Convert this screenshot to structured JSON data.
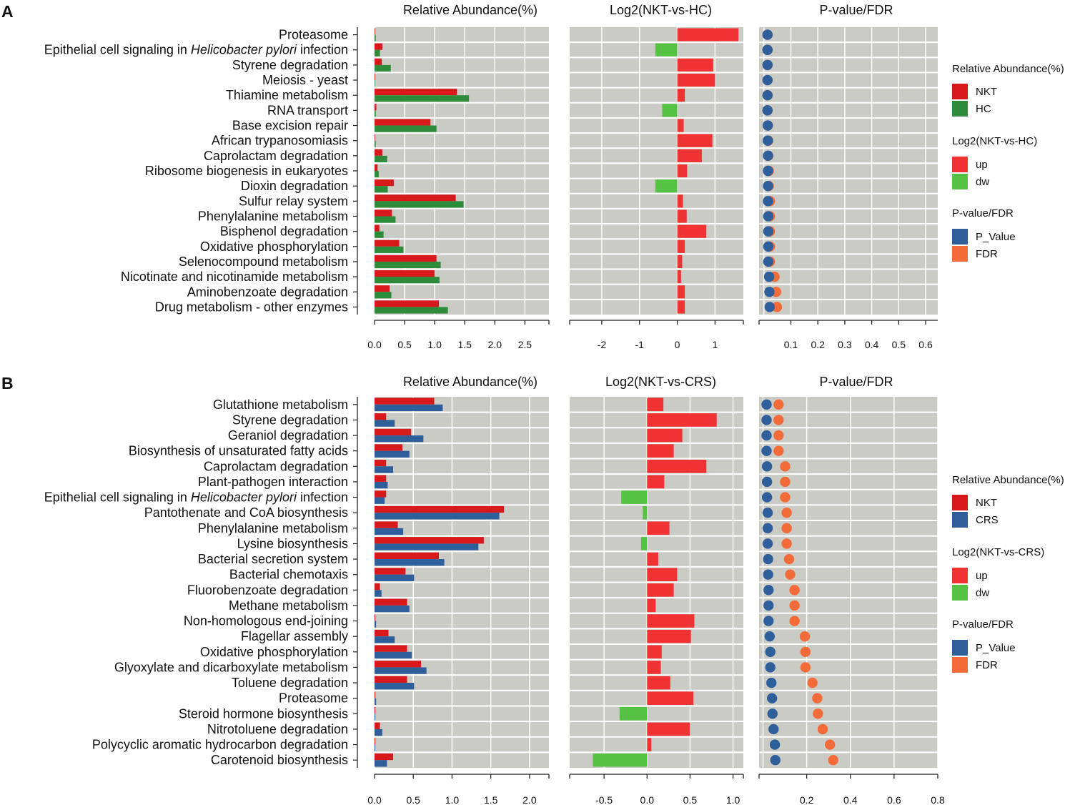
{
  "figure": {
    "panels": [
      {
        "label": "A",
        "categories": [
          "Proteasome",
          "Epithelial cell signaling in Helicobacter pylori infection",
          "Styrene degradation",
          "Meiosis - yeast",
          "Thiamine metabolism",
          "RNA transport",
          "Base excision repair",
          "African trypanosomiasis",
          "Caprolactam degradation",
          "Ribosome biogenesis in eukaryotes",
          "Dioxin degradation",
          "Sulfur relay system",
          "Phenylalanine metabolism",
          "Bisphenol degradation",
          "Oxidative phosphorylation",
          "Selenocompound metabolism",
          "Nicotinate and nicotinamide metabolism",
          "Aminobenzoate degradation",
          "Drug metabolism - other enzymes"
        ],
        "abundance": {
          "title": "Relative Abundance(%)",
          "xlim": [
            0,
            2.9
          ],
          "ticks": [
            "0.0",
            "0.5",
            "1.0",
            "1.5",
            "2.0",
            "2.5"
          ],
          "series": [
            {
              "name": "NKT",
              "color": "#d7191c",
              "values": [
                0.01,
                0.13,
                0.12,
                0.01,
                1.37,
                0.03,
                0.93,
                0.01,
                0.13,
                0.05,
                0.32,
                1.35,
                0.29,
                0.08,
                0.41,
                1.03,
                1.0,
                0.25,
                1.07
              ]
            },
            {
              "name": "HC",
              "color": "#2e8b3a",
              "values": [
                0.02,
                0.09,
                0.27,
                0.0,
                1.57,
                0.02,
                1.03,
                0.02,
                0.21,
                0.07,
                0.22,
                1.48,
                0.35,
                0.15,
                0.48,
                1.1,
                1.08,
                0.28,
                1.22
              ]
            }
          ]
        },
        "log2": {
          "title": "Log2(NKT-vs-HC)",
          "xlim": [
            -2.85,
            1.75
          ],
          "ticks": [
            "-2",
            "-1",
            "0",
            "1"
          ],
          "values": [
            1.62,
            -0.58,
            0.95,
            1.0,
            0.2,
            -0.4,
            0.17,
            0.93,
            0.65,
            0.26,
            -0.58,
            0.15,
            0.25,
            0.77,
            0.2,
            0.13,
            0.1,
            0.2,
            0.2
          ]
        },
        "pvalue": {
          "title": "P-value/FDR",
          "xlim": [
            -0.018,
            0.645
          ],
          "ticks": [
            "0.1",
            "0.2",
            "0.3",
            "0.4",
            "0.5",
            "0.6"
          ],
          "p_value": [
            0.0,
            0.0,
            0.0,
            0.0,
            0.0,
            0.0,
            0.001,
            0.001,
            0.002,
            0.002,
            0.002,
            0.002,
            0.003,
            0.003,
            0.003,
            0.003,
            0.006,
            0.007,
            0.008
          ],
          "fdr": [
            0.0,
            0.0,
            0.0,
            0.0,
            0.0,
            0.0,
            0.001,
            0.003,
            0.003,
            0.005,
            0.005,
            0.009,
            0.009,
            0.009,
            0.009,
            0.009,
            0.026,
            0.032,
            0.035
          ]
        },
        "legend": {
          "abundance_title": "Relative Abundance(%)",
          "abundance_items": [
            "NKT",
            "HC"
          ],
          "log2_title": "Log2(NKT-vs-HC)",
          "log2_items": [
            "up",
            "dw"
          ],
          "p_title": "P-value/FDR",
          "p_items": [
            "P_Value",
            "FDR"
          ]
        }
      },
      {
        "label": "B",
        "categories": [
          "Glutathione metabolism",
          "Styrene degradation",
          "Geraniol degradation",
          "Biosynthesis of unsaturated fatty acids",
          "Caprolactam degradation",
          "Plant-pathogen interaction",
          "Epithelial cell signaling in Helicobacter pylori infection",
          "Pantothenate and CoA biosynthesis",
          "Phenylalanine metabolism",
          "Lysine biosynthesis",
          "Bacterial secretion system",
          "Bacterial chemotaxis",
          "Fluorobenzoate degradation",
          "Methane metabolism",
          "Non-homologous end-joining",
          "Flagellar assembly",
          "Oxidative phosphorylation",
          "Glyoxylate and dicarboxylate metabolism",
          "Toluene degradation",
          "Proteasome",
          "Steroid hormone biosynthesis",
          "Nitrotoluene degradation",
          "Polycyclic aromatic hydrocarbon degradation",
          "Carotenoid biosynthesis"
        ],
        "abundance": {
          "title": "Relative Abundance(%)",
          "xlim": [
            0,
            2.25
          ],
          "ticks": [
            "0.0",
            "0.5",
            "1.0",
            "1.5",
            "2.0"
          ],
          "series": [
            {
              "name": "NKT",
              "color": "#d7191c",
              "values": [
                0.77,
                0.15,
                0.47,
                0.36,
                0.15,
                0.15,
                0.15,
                1.67,
                0.3,
                1.41,
                0.83,
                0.4,
                0.07,
                0.42,
                0.01,
                0.18,
                0.42,
                0.6,
                0.42,
                0.01,
                0.01,
                0.07,
                0.01,
                0.24
              ]
            },
            {
              "name": "CRS",
              "color": "#2f5f9b",
              "values": [
                0.88,
                0.26,
                0.63,
                0.45,
                0.24,
                0.17,
                0.13,
                1.61,
                0.37,
                1.34,
                0.9,
                0.51,
                0.09,
                0.45,
                0.02,
                0.26,
                0.48,
                0.67,
                0.51,
                0.02,
                0.01,
                0.1,
                0.01,
                0.16
              ]
            }
          ]
        },
        "log2": {
          "title": "Log2(NKT-vs-CRS)",
          "xlim": [
            -0.9,
            1.12
          ],
          "ticks": [
            "-0.5",
            "0.0",
            "0.5",
            "1.0"
          ],
          "values": [
            0.19,
            0.81,
            0.41,
            0.31,
            0.69,
            0.2,
            -0.3,
            -0.05,
            0.26,
            -0.07,
            0.13,
            0.35,
            0.31,
            0.1,
            0.55,
            0.51,
            0.17,
            0.16,
            0.27,
            0.54,
            -0.32,
            0.5,
            0.05,
            -0.63
          ]
        },
        "pvalue": {
          "title": "P-value/FDR",
          "xlim": [
            -0.018,
            0.8
          ],
          "ticks": [
            "0.2",
            "0.4",
            "0.6",
            "0.8"
          ],
          "p_value": [
            0.0,
            0.0,
            0.0,
            0.0,
            0.002,
            0.002,
            0.002,
            0.005,
            0.005,
            0.005,
            0.007,
            0.007,
            0.009,
            0.009,
            0.009,
            0.014,
            0.017,
            0.017,
            0.022,
            0.025,
            0.027,
            0.032,
            0.038,
            0.04
          ],
          "fdr": [
            0.055,
            0.055,
            0.055,
            0.055,
            0.085,
            0.085,
            0.085,
            0.092,
            0.092,
            0.092,
            0.103,
            0.108,
            0.128,
            0.128,
            0.128,
            0.175,
            0.178,
            0.178,
            0.21,
            0.232,
            0.235,
            0.257,
            0.29,
            0.305
          ]
        },
        "legend": {
          "abundance_title": "Relative Abundance(%)",
          "abundance_items": [
            "NKT",
            "CRS"
          ],
          "log2_title": "Log2(NKT-vs-CRS)",
          "log2_items": [
            "up",
            "dw"
          ],
          "p_title": "P-value/FDR",
          "p_items": [
            "P_Value",
            "FDR"
          ]
        }
      }
    ]
  },
  "colors": {
    "panel_bg": "#cbcbc6",
    "grid": "#ffffff",
    "up": "#f03232",
    "dw": "#56c244",
    "p_value": "#2f5f9b",
    "fdr": "#f26b38"
  },
  "italic_term": "Helicobacter pylori",
  "chart_data": [
    {
      "type": "bar",
      "title": "Relative Abundance(%)",
      "panel": "A",
      "categories": [
        "Proteasome",
        "Epithelial cell signaling in Helicobacter pylori infection",
        "Styrene degradation",
        "Meiosis - yeast",
        "Thiamine metabolism",
        "RNA transport",
        "Base excision repair",
        "African trypanosomiasis",
        "Caprolactam degradation",
        "Ribosome biogenesis in eukaryotes",
        "Dioxin degradation",
        "Sulfur relay system",
        "Phenylalanine metabolism",
        "Bisphenol degradation",
        "Oxidative phosphorylation",
        "Selenocompound metabolism",
        "Nicotinate and nicotinamide metabolism",
        "Aminobenzoate degradation",
        "Drug metabolism - other enzymes"
      ],
      "series": [
        {
          "name": "NKT",
          "values": [
            0.01,
            0.13,
            0.12,
            0.01,
            1.37,
            0.03,
            0.93,
            0.01,
            0.13,
            0.05,
            0.32,
            1.35,
            0.29,
            0.08,
            0.41,
            1.03,
            1.0,
            0.25,
            1.07
          ]
        },
        {
          "name": "HC",
          "values": [
            0.02,
            0.09,
            0.27,
            0.0,
            1.57,
            0.02,
            1.03,
            0.02,
            0.21,
            0.07,
            0.22,
            1.48,
            0.35,
            0.15,
            0.48,
            1.1,
            1.08,
            0.28,
            1.22
          ]
        }
      ],
      "xlim": [
        0,
        2.9
      ]
    },
    {
      "type": "bar",
      "title": "Log2(NKT-vs-HC)",
      "panel": "A",
      "values": [
        1.62,
        -0.58,
        0.95,
        1.0,
        0.2,
        -0.4,
        0.17,
        0.93,
        0.65,
        0.26,
        -0.58,
        0.15,
        0.25,
        0.77,
        0.2,
        0.13,
        0.1,
        0.2,
        0.2
      ],
      "xlim": [
        -2.85,
        1.75
      ]
    },
    {
      "type": "scatter",
      "title": "P-value/FDR",
      "panel": "A",
      "series": [
        {
          "name": "P_Value",
          "values": [
            0.0,
            0.0,
            0.0,
            0.0,
            0.0,
            0.0,
            0.001,
            0.001,
            0.002,
            0.002,
            0.002,
            0.002,
            0.003,
            0.003,
            0.003,
            0.003,
            0.006,
            0.007,
            0.008
          ]
        },
        {
          "name": "FDR",
          "values": [
            0.0,
            0.0,
            0.0,
            0.0,
            0.0,
            0.0,
            0.001,
            0.003,
            0.003,
            0.005,
            0.005,
            0.009,
            0.009,
            0.009,
            0.009,
            0.009,
            0.026,
            0.032,
            0.035
          ]
        }
      ],
      "xlim": [
        -0.018,
        0.645
      ]
    },
    {
      "type": "bar",
      "title": "Relative Abundance(%)",
      "panel": "B",
      "categories": [
        "Glutathione metabolism",
        "Styrene degradation",
        "Geraniol degradation",
        "Biosynthesis of unsaturated fatty acids",
        "Caprolactam degradation",
        "Plant-pathogen interaction",
        "Epithelial cell signaling in Helicobacter pylori infection",
        "Pantothenate and CoA biosynthesis",
        "Phenylalanine metabolism",
        "Lysine biosynthesis",
        "Bacterial secretion system",
        "Bacterial chemotaxis",
        "Fluorobenzoate degradation",
        "Methane metabolism",
        "Non-homologous end-joining",
        "Flagellar assembly",
        "Oxidative phosphorylation",
        "Glyoxylate and dicarboxylate metabolism",
        "Toluene degradation",
        "Proteasome",
        "Steroid hormone biosynthesis",
        "Nitrotoluene degradation",
        "Polycyclic aromatic hydrocarbon degradation",
        "Carotenoid biosynthesis"
      ],
      "series": [
        {
          "name": "NKT",
          "values": [
            0.77,
            0.15,
            0.47,
            0.36,
            0.15,
            0.15,
            0.15,
            1.67,
            0.3,
            1.41,
            0.83,
            0.4,
            0.07,
            0.42,
            0.01,
            0.18,
            0.42,
            0.6,
            0.42,
            0.01,
            0.01,
            0.07,
            0.01,
            0.24
          ]
        },
        {
          "name": "CRS",
          "values": [
            0.88,
            0.26,
            0.63,
            0.45,
            0.24,
            0.17,
            0.13,
            1.61,
            0.37,
            1.34,
            0.9,
            0.51,
            0.09,
            0.45,
            0.02,
            0.26,
            0.48,
            0.67,
            0.51,
            0.02,
            0.01,
            0.1,
            0.01,
            0.16
          ]
        }
      ],
      "xlim": [
        0,
        2.25
      ]
    },
    {
      "type": "bar",
      "title": "Log2(NKT-vs-CRS)",
      "panel": "B",
      "values": [
        0.19,
        0.81,
        0.41,
        0.31,
        0.69,
        0.2,
        -0.3,
        -0.05,
        0.26,
        -0.07,
        0.13,
        0.35,
        0.31,
        0.1,
        0.55,
        0.51,
        0.17,
        0.16,
        0.27,
        0.54,
        -0.32,
        0.5,
        0.05,
        -0.63
      ],
      "xlim": [
        -0.9,
        1.12
      ]
    },
    {
      "type": "scatter",
      "title": "P-value/FDR",
      "panel": "B",
      "series": [
        {
          "name": "P_Value",
          "values": [
            0.0,
            0.0,
            0.0,
            0.0,
            0.002,
            0.002,
            0.002,
            0.005,
            0.005,
            0.005,
            0.007,
            0.007,
            0.009,
            0.009,
            0.009,
            0.014,
            0.017,
            0.017,
            0.022,
            0.025,
            0.027,
            0.032,
            0.038,
            0.04
          ]
        },
        {
          "name": "FDR",
          "values": [
            0.055,
            0.055,
            0.055,
            0.055,
            0.085,
            0.085,
            0.085,
            0.092,
            0.092,
            0.092,
            0.103,
            0.108,
            0.128,
            0.128,
            0.128,
            0.175,
            0.178,
            0.178,
            0.21,
            0.232,
            0.235,
            0.257,
            0.29,
            0.305
          ]
        }
      ],
      "xlim": [
        -0.018,
        0.8
      ]
    }
  ]
}
